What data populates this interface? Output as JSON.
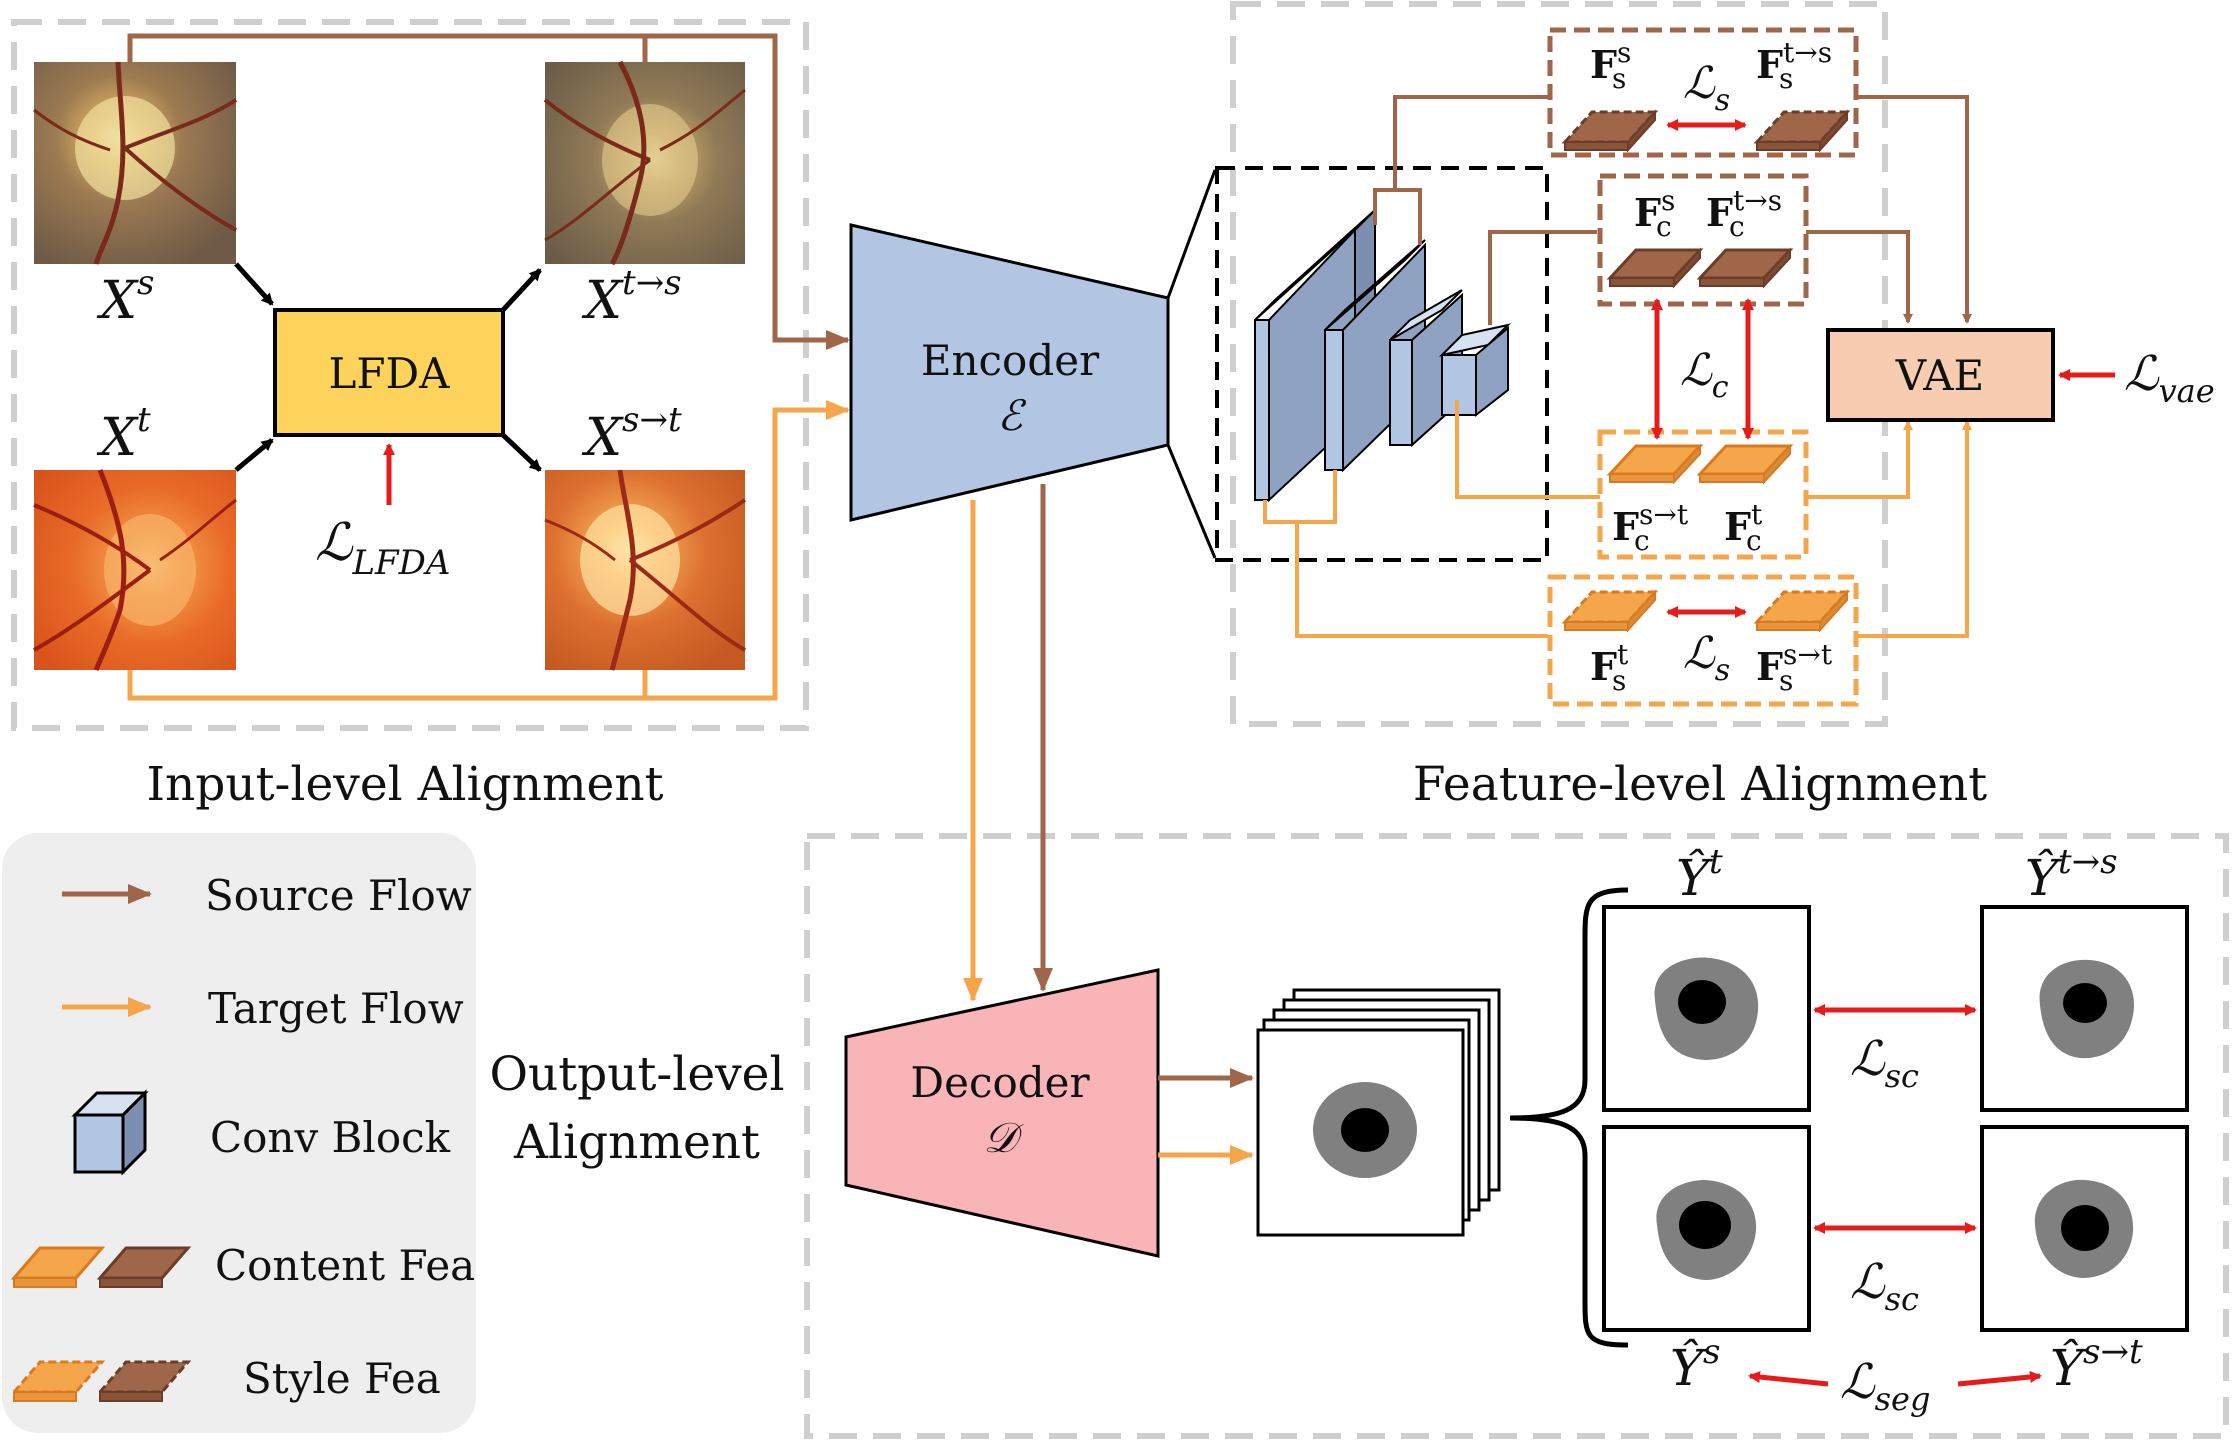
{
  "sections": {
    "input": "Input-level Alignment",
    "feature": "Feature-level Alignment",
    "output_line1": "Output-level",
    "output_line2": "Alignment"
  },
  "images": {
    "xs": {
      "base": "X",
      "sup": "s"
    },
    "xts": {
      "base": "X",
      "sup": "t→s"
    },
    "xt": {
      "base": "X",
      "sup": "t"
    },
    "xst": {
      "base": "X",
      "sup": "s→t"
    }
  },
  "blocks": {
    "lfda": "LFDA",
    "encoder": "Encoder",
    "encoder_sym": "ℰ",
    "decoder": "Decoder",
    "decoder_sym": "𝒟",
    "vae": "VAE"
  },
  "losses": {
    "lfda": {
      "base": "ℒ",
      "sub": "LFDA"
    },
    "s_top": {
      "base": "ℒ",
      "sub": "s"
    },
    "c": {
      "base": "ℒ",
      "sub": "c"
    },
    "s_bottom": {
      "base": "ℒ",
      "sub": "s"
    },
    "vae": {
      "base": "ℒ",
      "sub": "vae"
    },
    "sc_top": {
      "base": "ℒ",
      "sub": "sc"
    },
    "sc_bottom": {
      "base": "ℒ",
      "sub": "sc"
    },
    "seg": {
      "base": "ℒ",
      "sub": "seg"
    }
  },
  "features": {
    "fss": {
      "base": "F",
      "sup": "s",
      "sub": "s"
    },
    "fsts": {
      "base": "F",
      "sup": "t→s",
      "sub": "s"
    },
    "fcs": {
      "base": "F",
      "sup": "s",
      "sub": "c"
    },
    "fcts": {
      "base": "F",
      "sup": "t→s",
      "sub": "c"
    },
    "fcst": {
      "base": "F",
      "sup": "s→t",
      "sub": "c"
    },
    "fct": {
      "base": "F",
      "sup": "t",
      "sub": "c"
    },
    "fst": {
      "base": "F",
      "sup": "t",
      "sub": "s"
    },
    "fsst": {
      "base": "F",
      "sup": "s→t",
      "sub": "s"
    }
  },
  "predictions": {
    "yt": {
      "base": "Ŷ",
      "sup": "t"
    },
    "yts": {
      "base": "Ŷ",
      "sup": "t→s"
    },
    "ys": {
      "base": "Ŷ",
      "sup": "s"
    },
    "yst": {
      "base": "Ŷ",
      "sup": "s→t"
    }
  },
  "legend": {
    "source_flow": "Source Flow",
    "target_flow": "Target Flow",
    "conv_block": "Conv Block",
    "content_fea": "Content Fea",
    "style_fea": "Style Fea"
  },
  "colors": {
    "source": "#a0664a",
    "target": "#f5a54a",
    "loss": "#e81b1b",
    "lfda_fill": "#fdd35c",
    "encoder_fill": "#b2c6e4",
    "decoder_fill": "#f9b4b7",
    "vae_fill": "#f7ccb0",
    "legend_bg": "#eeeeee",
    "dashed_gray": "#cfcfcf"
  }
}
